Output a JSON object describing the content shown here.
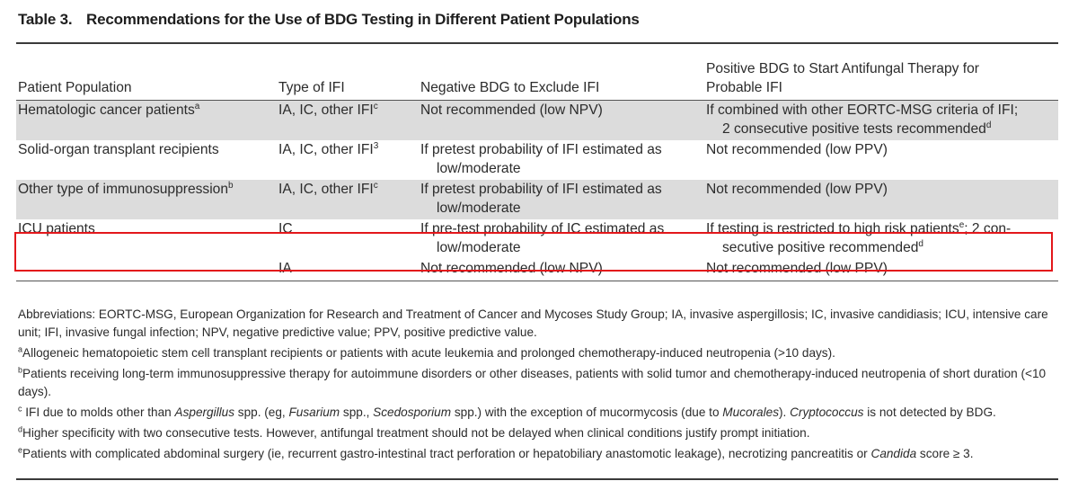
{
  "title": {
    "number": "Table 3.",
    "text": "Recommendations for the Use of BDG Testing in Different Patient Populations"
  },
  "header": {
    "col1": "Patient Population",
    "col2": "Type of IFI",
    "col3": "Negative BDG to Exclude IFI",
    "col4_line1": "Positive BDG to Start Antifungal Therapy for",
    "col4_line2": "Probable IFI"
  },
  "rows": [
    {
      "population": "Hematologic cancer patients",
      "population_sup": "a",
      "type": "IA, IC, other IFI",
      "type_sup": "c",
      "negative_line1": "Not recommended (low NPV)",
      "negative_line2": "",
      "positive_line1": "If combined with other EORTC-MSG criteria of IFI;",
      "positive_line2": "2 consecutive positive tests recommended",
      "positive_sup": "d"
    },
    {
      "population": "Solid-organ transplant recipients",
      "population_sup": "",
      "type": "IA, IC, other IFI",
      "type_sup": "3",
      "negative_line1": "If pretest probability of IFI estimated as",
      "negative_line2": "low/moderate",
      "positive_line1": "Not recommended (low PPV)",
      "positive_line2": "",
      "positive_sup": ""
    },
    {
      "population": "Other type of immunosuppression",
      "population_sup": "b",
      "type": "IA, IC, other IFI",
      "type_sup": "c",
      "negative_line1": "If pretest probability of IFI estimated as",
      "negative_line2": "low/moderate",
      "positive_line1": "Not recommended (low PPV)",
      "positive_line2": "",
      "positive_sup": ""
    },
    {
      "population": "ICU patients",
      "population_sup": "",
      "type": "IC",
      "type_sup": "",
      "negative_line1": "If pre-test probability of IC estimated as",
      "negative_line2": "low/moderate",
      "positive_line1": "If testing is restricted to high risk patients",
      "positive_line1_sup": "e",
      "positive_line1_tail": "; 2 con-",
      "positive_line2": "secutive positive recommended",
      "positive_sup": "d"
    },
    {
      "population": "",
      "population_sup": "",
      "type": "IA",
      "type_sup": "",
      "negative_line1": "Not recommended (low NPV)",
      "negative_line2": "",
      "positive_line1": "Not recommended (low PPV)",
      "positive_line2": "",
      "positive_sup": ""
    }
  ],
  "footnotes": {
    "abbreviations": "Abbreviations: EORTC-MSG, European Organization for Research and Treatment of Cancer and Mycoses Study Group; IA, invasive aspergillosis; IC, invasive candidiasis; ICU, intensive care unit; IFI, invasive fungal infection; NPV, negative predictive value; PPV, positive predictive value.",
    "a_mark": "a",
    "a": "Allogeneic hematopoietic stem cell transplant recipients or patients with acute leukemia and prolonged chemotherapy-induced neutropenia (>10 days).",
    "b_mark": "b",
    "b": "Patients receiving long-term immunosuppressive therapy for autoimmune disorders or other diseases, patients with solid tumor and chemotherapy-induced neutropenia of short duration (<10 days).",
    "c_mark": "c",
    "c_part1": " IFI due to molds other than ",
    "c_it1": "Aspergillus",
    "c_part2": " spp. (eg, ",
    "c_it2": "Fusarium",
    "c_part3": " spp., ",
    "c_it3": "Scedosporium",
    "c_part4": " spp.) with the exception of mucormycosis (due to ",
    "c_it4": "Mucorales",
    "c_part5": "). ",
    "c_it5": "Cryptococcus",
    "c_part6": " is not detected by BDG.",
    "d_mark": "d",
    "d": "Higher specificity with two consecutive tests. However, antifungal treatment should not be delayed when clinical conditions justify prompt initiation.",
    "e_mark": "e",
    "e_part1": "Patients with complicated abdominal surgery (ie, recurrent gastro-intestinal tract perforation or hepatobiliary anastomotic leakage), necrotizing pancreatitis or ",
    "e_it1": "Candida",
    "e_part2": " score ≥ 3."
  },
  "colors": {
    "highlight": "#e3171b",
    "row_shade": "#dcdcdc"
  }
}
